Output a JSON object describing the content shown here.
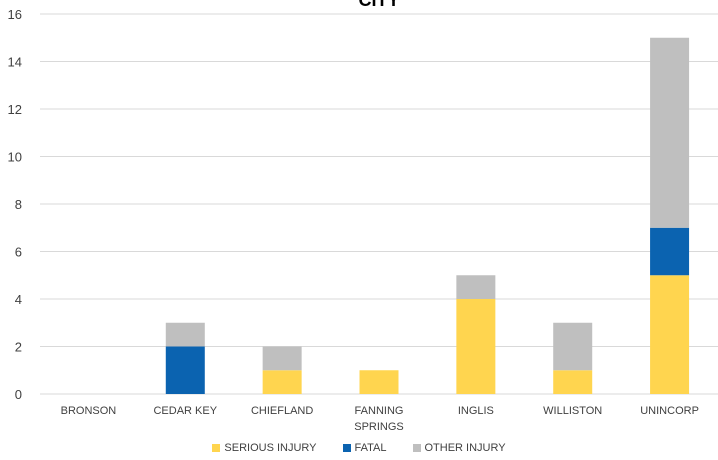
{
  "chart_data": {
    "type": "bar",
    "stacked": true,
    "title": "CITY",
    "xlabel": "",
    "ylabel": "",
    "ylim": [
      0,
      16
    ],
    "yticks": [
      0,
      2,
      4,
      6,
      8,
      10,
      12,
      14,
      16
    ],
    "grid": true,
    "legend_position": "bottom",
    "categories": [
      "BRONSON",
      "CEDAR KEY",
      "CHIEFLAND",
      "FANNING SPRINGS",
      "INGLIS",
      "WILLISTON",
      "UNINCORP"
    ],
    "series": [
      {
        "name": "SERIOUS INJURY",
        "color": "#FFD54F",
        "values": [
          0,
          0,
          1,
          1,
          4,
          1,
          5
        ]
      },
      {
        "name": "FATAL",
        "color": "#0B63B0",
        "values": [
          0,
          2,
          0,
          0,
          0,
          0,
          2
        ]
      },
      {
        "name": "OTHER INJURY",
        "color": "#BFBFBF",
        "values": [
          0,
          1,
          1,
          0,
          1,
          2,
          8
        ]
      }
    ]
  }
}
